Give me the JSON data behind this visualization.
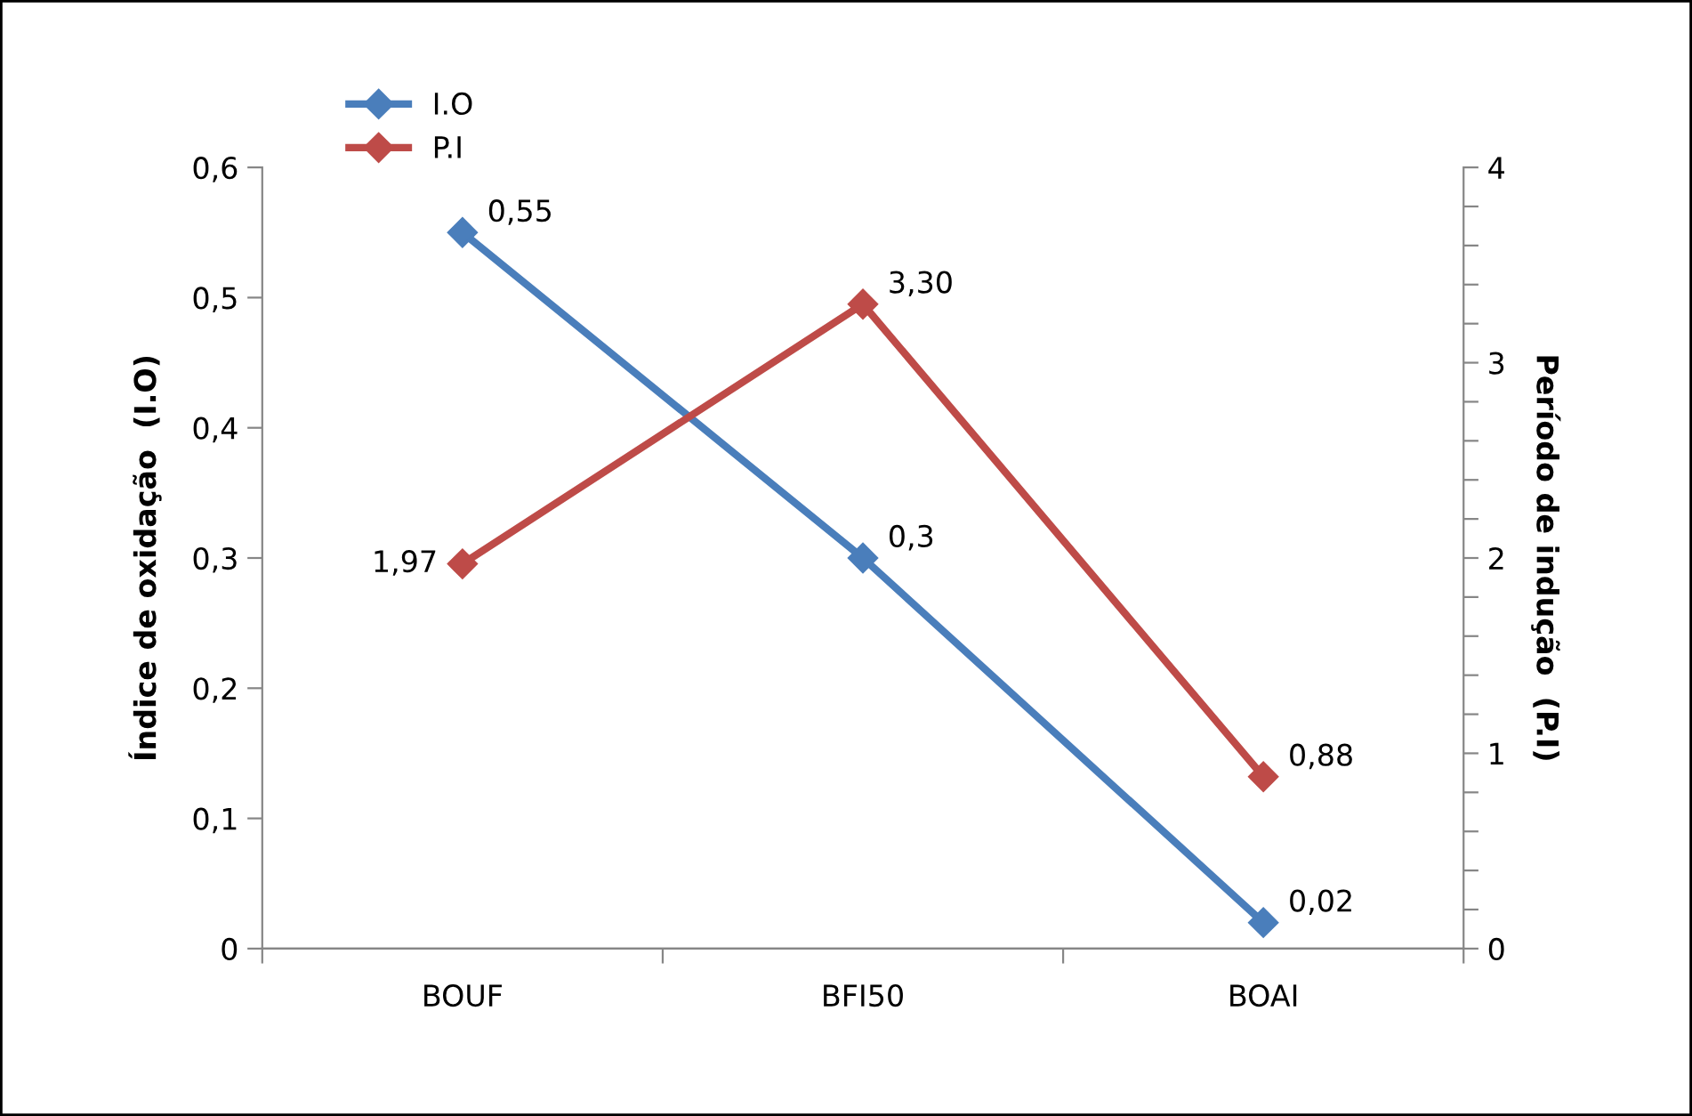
{
  "chart_data": {
    "type": "line",
    "categories": [
      "BOUF",
      "BFI50",
      "BOAI"
    ],
    "ylabel": "Índice de oxidação  (I.O)",
    "y2label": "Período de indução  (P.I)",
    "series": [
      {
        "name": "I.O",
        "color": "#4a7ebb",
        "values": [
          0.55,
          0.3,
          0.02
        ],
        "value_labels": [
          "0,55",
          "0,3",
          "0,02"
        ]
      },
      {
        "name": "P.I",
        "color": "#be4b48",
        "values": [
          1.97,
          3.3,
          0.88
        ],
        "value_labels": [
          "1,97",
          "3,30",
          "0,88"
        ],
        "axis": "y2"
      }
    ],
    "ylim": [
      0,
      0.6
    ],
    "yticks": [
      0,
      {
        "value": 0.1,
        "label": "0,1"
      },
      {
        "value": 0.2,
        "label": "0,2"
      },
      {
        "value": 0.3,
        "label": "0,3"
      },
      {
        "value": 0.4,
        "label": "0,4"
      },
      {
        "value": 0.5,
        "label": "0,5"
      },
      {
        "value": 0.6,
        "label": "0,6"
      }
    ],
    "y2lim": [
      0,
      4
    ],
    "y2ticks": [
      0,
      {
        "value": 0.2,
        "label": null
      },
      {
        "value": 0.4,
        "label": null
      },
      {
        "value": 0.6,
        "label": null
      },
      {
        "value": 0.8,
        "label": null
      },
      1,
      {
        "value": 1.2,
        "label": null
      },
      {
        "value": 1.4,
        "label": null
      },
      {
        "value": 1.6,
        "label": null
      },
      {
        "value": 1.8,
        "label": null
      },
      2,
      {
        "value": 2.2,
        "label": null
      },
      {
        "value": 2.4,
        "label": null
      },
      {
        "value": 2.6,
        "label": null
      },
      {
        "value": 2.8,
        "label": null
      },
      3,
      {
        "value": 3.2,
        "label": null
      },
      {
        "value": 3.4,
        "label": null
      },
      {
        "value": 3.6,
        "label": null
      },
      {
        "value": 3.8,
        "label": null
      },
      4
    ],
    "marker": "diamond",
    "line_style": "solid",
    "grid": false,
    "legend": "top left"
  }
}
